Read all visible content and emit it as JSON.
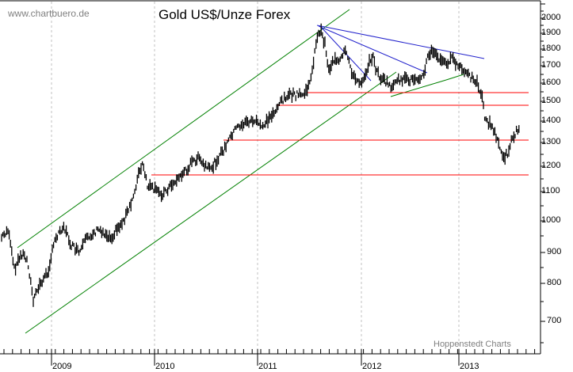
{
  "header": {
    "source": "www.chartbuero.de",
    "title": "Gold US$/Unze Forex",
    "credit": "Hoppenstedt Charts"
  },
  "colors": {
    "price_bars": "#000000",
    "channel_lines": "#008000",
    "resistance_lines": "#3333cc",
    "support_lines": "#ff0000",
    "grid": "#c0c0c0"
  },
  "chart_data": {
    "type": "bar",
    "subtype": "ohlc-price-chart",
    "title": "Gold US$/Unze Forex",
    "xlabel": "",
    "ylabel": "",
    "y_scale": "log",
    "ylim": [
      650,
      2100
    ],
    "y_ticks": [
      700,
      800,
      900,
      1000,
      1100,
      1200,
      1300,
      1400,
      1500,
      1600,
      1700,
      1800,
      1900,
      2000
    ],
    "x_ticks": [
      "2009",
      "2010",
      "2011",
      "2012",
      "2013"
    ],
    "grid": "vertical dashed at year boundaries",
    "x": [
      "2008-07",
      "2008-10",
      "2009-01",
      "2009-04",
      "2009-07",
      "2009-10",
      "2010-01",
      "2010-04",
      "2010-07",
      "2010-10",
      "2011-01",
      "2011-04",
      "2011-07",
      "2011-09",
      "2011-12",
      "2012-03",
      "2012-06",
      "2012-10",
      "2013-01",
      "2013-04",
      "2013-06",
      "2013-08"
    ],
    "series": [
      {
        "name": "Gold price (approx close, US$)",
        "values": [
          950,
          720,
          880,
          900,
          940,
          1050,
          1100,
          1160,
          1200,
          1350,
          1380,
          1480,
          1600,
          1900,
          1600,
          1680,
          1580,
          1780,
          1670,
          1450,
          1220,
          1400
        ]
      }
    ],
    "annotations": {
      "horizontal_support_levels": [
        1540,
        1480,
        1310,
        1160
      ],
      "green_uptrend_channel": "parallel rising channel from 2008 low (~680) to 2011 high (~1920)",
      "blue_downtrend_lines": "fan of descending resistance lines from Sept 2011 high ~1920",
      "green_short_uptrend": "rising support lines in 2011-2012"
    },
    "legend": []
  },
  "axis": {
    "y_labels": [
      "2000",
      "1900",
      "1800",
      "1700",
      "1600",
      "1500",
      "1400",
      "1300",
      "1200",
      "1100",
      "1000",
      "900",
      "800",
      "700"
    ],
    "x_labels": [
      "2009",
      "2010",
      "2011",
      "2012",
      "2013"
    ]
  }
}
